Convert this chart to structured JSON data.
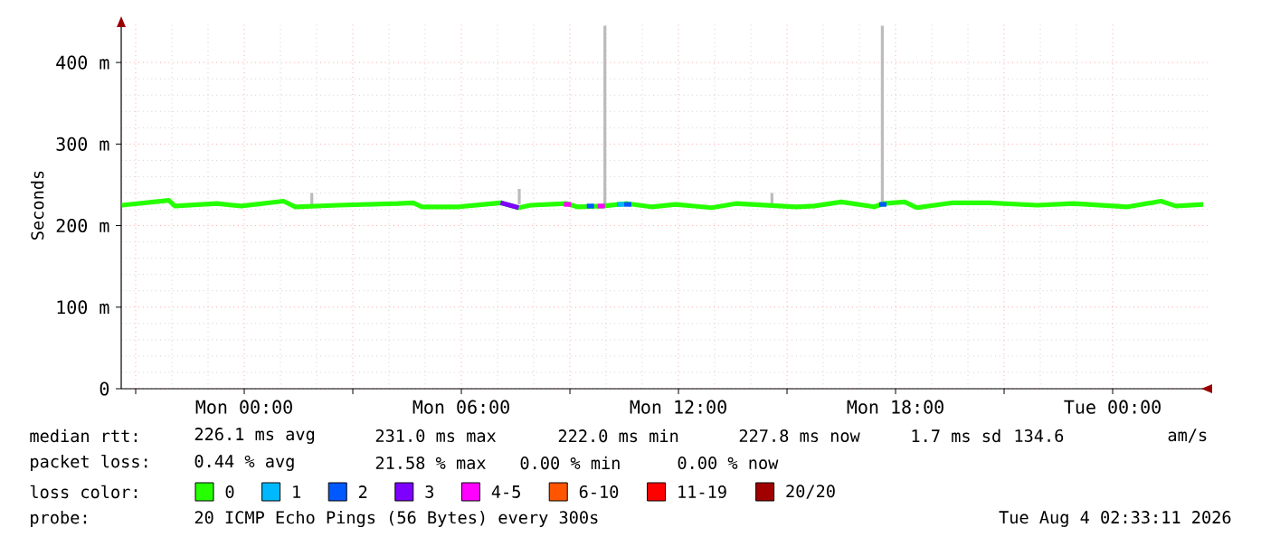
{
  "chart_data": {
    "type": "line",
    "ylabel": "Seconds",
    "legend_title": "loss color:",
    "legend": "bottom",
    "grid": true,
    "marker": "none",
    "xlim": [
      "2026-08-02T20:36",
      "2026-08-04T02:39"
    ],
    "ylim": [
      0,
      450
    ],
    "xticks": [
      {
        "value": "2026-08-02T21:00",
        "label": null
      },
      {
        "value": "2026-08-03T00:00",
        "label": "Mon 00:00"
      },
      {
        "value": "2026-08-03T03:00",
        "label": null
      },
      {
        "value": "2026-08-03T06:00",
        "label": "Mon 06:00"
      },
      {
        "value": "2026-08-03T09:00",
        "label": null
      },
      {
        "value": "2026-08-03T12:00",
        "label": "Mon 12:00"
      },
      {
        "value": "2026-08-03T15:00",
        "label": null
      },
      {
        "value": "2026-08-03T18:00",
        "label": "Mon 18:00"
      },
      {
        "value": "2026-08-03T21:00",
        "label": null
      },
      {
        "value": "2026-08-04T00:00",
        "label": "Tue 00:00"
      }
    ],
    "yticks": [
      0,
      {
        "value": 100,
        "label": "100 m"
      },
      {
        "value": 200,
        "label": "200 m"
      },
      {
        "value": 300,
        "label": "300 m"
      },
      {
        "value": 400,
        "label": "400 m"
      }
    ],
    "series": [
      {
        "name": "0",
        "color": "#26ff00",
        "x": [
          "2026-08-02T20:37",
          "2026-08-02T21:55",
          "2026-08-02T22:05",
          "2026-08-02T23:15",
          "2026-08-02T23:55",
          "2026-08-03T01:05",
          "2026-08-03T01:25",
          "2026-08-03T02:35",
          "2026-08-03T04:15",
          "2026-08-03T04:40",
          "2026-08-03T04:55",
          "2026-08-03T05:55",
          "2026-08-03T07:05",
          "2026-08-03T07:35",
          "2026-08-03T07:55",
          "2026-08-03T08:55",
          "2026-08-03T09:12",
          "2026-08-03T09:55",
          "2026-08-03T10:35",
          "2026-08-03T11:15",
          "2026-08-03T11:55",
          "2026-08-03T12:55",
          "2026-08-03T13:35",
          "2026-08-03T15:15",
          "2026-08-03T15:45",
          "2026-08-03T16:30",
          "2026-08-03T17:25",
          "2026-08-03T17:40",
          "2026-08-03T18:15",
          "2026-08-03T18:35",
          "2026-08-03T19:35",
          "2026-08-03T20:35",
          "2026-08-03T21:55",
          "2026-08-03T22:55",
          "2026-08-04T00:25",
          "2026-08-04T01:20",
          "2026-08-04T01:45",
          "2026-08-04T02:30"
        ],
        "values": [
          225,
          231,
          224,
          227,
          224,
          230,
          223,
          225,
          227,
          228,
          223,
          223,
          228,
          222,
          225,
          227,
          223,
          224,
          227,
          223,
          226,
          222,
          227,
          223,
          224,
          229,
          223,
          227,
          229,
          222,
          228,
          228,
          225,
          227,
          223,
          230,
          224,
          226
        ]
      },
      {
        "name": "1",
        "color": "#00b8ff",
        "x": [
          "2026-08-03T10:18",
          "2026-08-03T10:30"
        ],
        "values": [
          226,
          226
        ]
      },
      {
        "name": "2",
        "color": "#0059ff",
        "x": [
          "2026-08-03T09:28",
          "2026-08-03T09:40",
          null,
          "2026-08-03T10:30",
          "2026-08-03T10:42",
          null,
          "2026-08-03T17:33",
          "2026-08-03T17:45"
        ],
        "values": [
          224,
          224,
          null,
          226,
          226,
          null,
          226,
          226
        ]
      },
      {
        "name": "3",
        "color": "#7e00ff",
        "x": [
          "2026-08-03T07:05",
          "2026-08-03T07:35"
        ],
        "values": [
          228,
          222
        ]
      },
      {
        "name": "4-5",
        "color": "#ff00ff",
        "x": [
          "2026-08-03T08:50",
          "2026-08-03T09:02",
          null,
          "2026-08-03T09:46",
          "2026-08-03T09:58"
        ],
        "values": [
          226,
          226,
          null,
          224,
          224
        ]
      },
      {
        "name": "6-10",
        "color": "#ff5500"
      },
      {
        "name": "11-19",
        "color": "#ff0000"
      },
      {
        "name": "20/20",
        "color": "#a10000"
      },
      {
        "type": "bar",
        "color": "#bbbbbb",
        "x": [
          "2026-08-03T01:52",
          "2026-08-03T07:36",
          "2026-08-03T09:58",
          "2026-08-03T14:35",
          "2026-08-03T17:38"
        ],
        "base": [
          226,
          226,
          226,
          226,
          226
        ],
        "values": [
          14,
          19,
          219,
          14,
          219
        ]
      }
    ],
    "annotations": [
      "median rtt:",
      "226.1 ms avg",
      "231.0 ms max",
      "222.0 ms min",
      "227.8 ms now",
      "1.7 ms sd",
      "134.6",
      "am/s",
      "packet loss:",
      "0.44 % avg",
      "21.58 % max",
      "0.00 % min",
      "0.00 % now",
      "probe:",
      "20 ICMP Echo Pings (56 Bytes) every 300s",
      "Tue Aug  4 02:33:11 2026"
    ]
  }
}
